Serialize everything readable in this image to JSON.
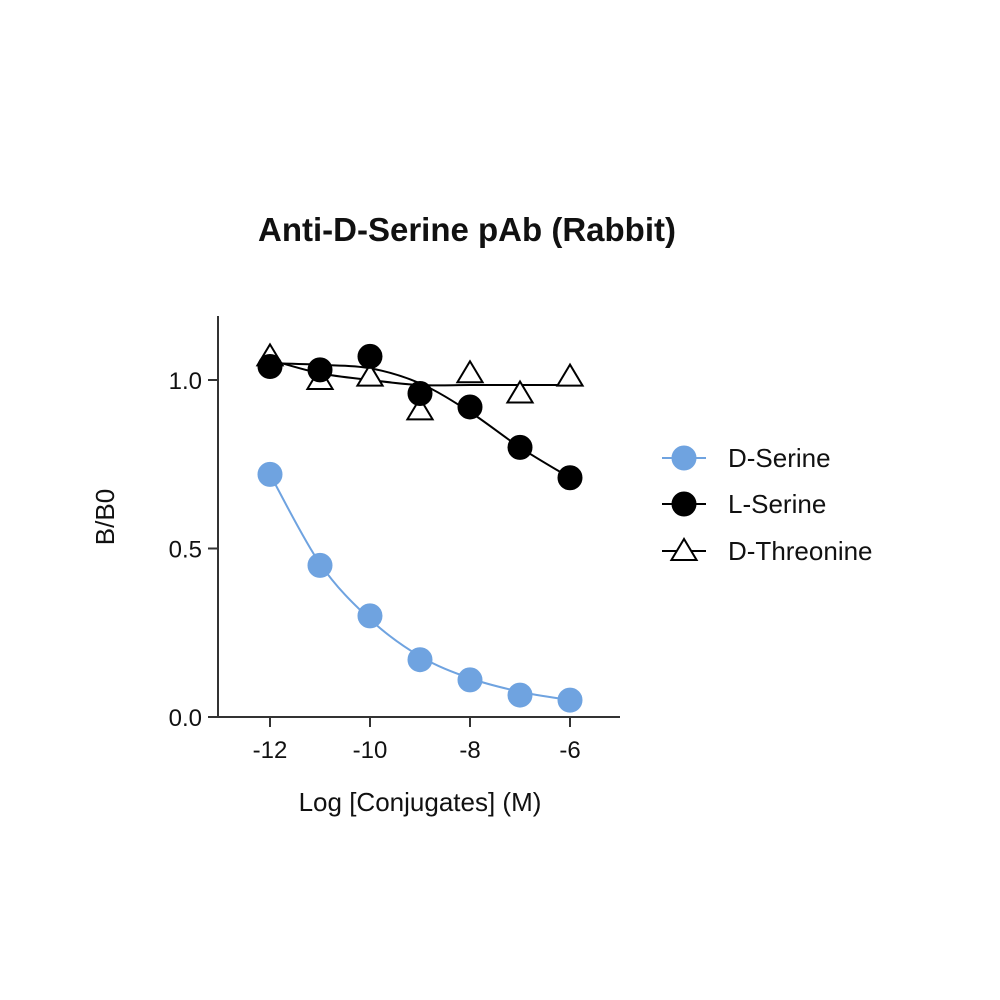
{
  "chart_data": {
    "type": "scatter",
    "title": "Anti-D-Serine pAb (Rabbit)",
    "xlabel": "Log [Conjugates] (M)",
    "ylabel": "B/B0",
    "xlim": [
      -13.2,
      -5.0
    ],
    "ylim": [
      0.0,
      1.2
    ],
    "xticks": [
      -12,
      -10,
      -8,
      -6
    ],
    "xtick_labels": [
      "-12",
      "-10",
      "-8",
      "-6"
    ],
    "yticks": [
      0.0,
      0.5,
      1.0
    ],
    "ytick_labels": [
      "0.0",
      "0.5",
      "1.0"
    ],
    "grid": false,
    "legend_position": "right",
    "x": [
      -12,
      -11,
      -10,
      -9,
      -8,
      -7,
      -6
    ],
    "series": [
      {
        "name": "D-Serine",
        "marker": "circle-filled",
        "color": "#6fa3e0",
        "values": [
          0.72,
          0.45,
          0.3,
          0.17,
          0.11,
          0.065,
          0.05
        ],
        "fit": [
          0.72,
          0.455,
          0.29,
          0.18,
          0.115,
          0.075,
          0.05
        ]
      },
      {
        "name": "L-Serine",
        "marker": "circle-filled",
        "color": "#000000",
        "values": [
          1.04,
          1.03,
          1.07,
          0.96,
          0.92,
          0.8,
          0.71
        ],
        "fit": [
          1.05,
          1.045,
          1.035,
          0.99,
          0.905,
          0.8,
          0.71
        ]
      },
      {
        "name": "D-Threonine",
        "marker": "triangle-open",
        "color": "#000000",
        "values": [
          1.07,
          1.0,
          1.01,
          0.91,
          1.02,
          0.96,
          1.01
        ],
        "fit": [
          1.06,
          1.02,
          1.0,
          0.985,
          0.985,
          0.985,
          0.985
        ]
      }
    ]
  }
}
